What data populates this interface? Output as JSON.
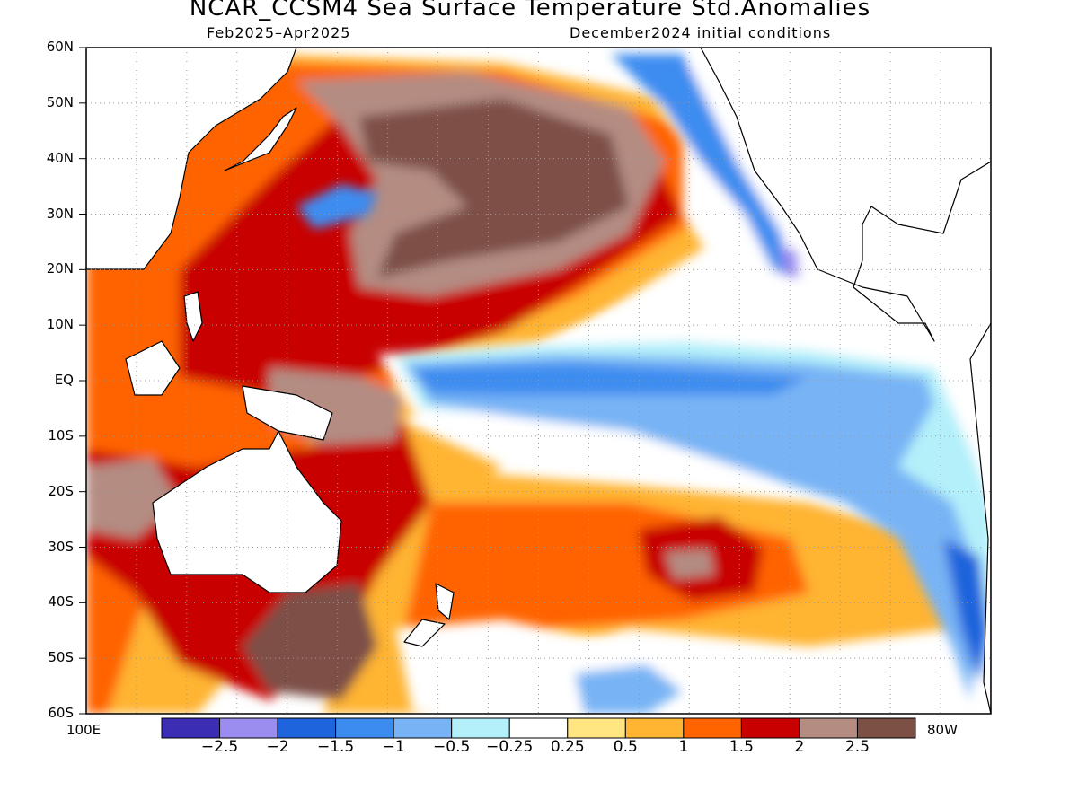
{
  "title": "NCAR_CCSM4 Sea Surface Temperature Std.Anomalies",
  "subtitle_left": "Feb2025–Apr2025",
  "subtitle_right": "December2024 initial conditions",
  "lat_labels": [
    "60N",
    "50N",
    "40N",
    "30N",
    "20N",
    "10N",
    "EQ",
    "10S",
    "20S",
    "30S",
    "40S",
    "50S",
    "60S"
  ],
  "lon_left_label": "100E",
  "lon_right_label": "80W",
  "colorbar": {
    "colors": [
      "#3b2db4",
      "#9b8cf0",
      "#1e64dc",
      "#3c8cf0",
      "#78b4f5",
      "#b4f0fa",
      "#ffffff",
      "#ffe682",
      "#ffb432",
      "#ff6400",
      "#c80000",
      "#b48c82",
      "#7d5046"
    ],
    "tick_labels": [
      "−2.5",
      "−2",
      "−1.5",
      "−1",
      "−0.5",
      "−0.25",
      "0.25",
      "0.5",
      "1",
      "1.5",
      "2",
      "2.5"
    ]
  }
}
